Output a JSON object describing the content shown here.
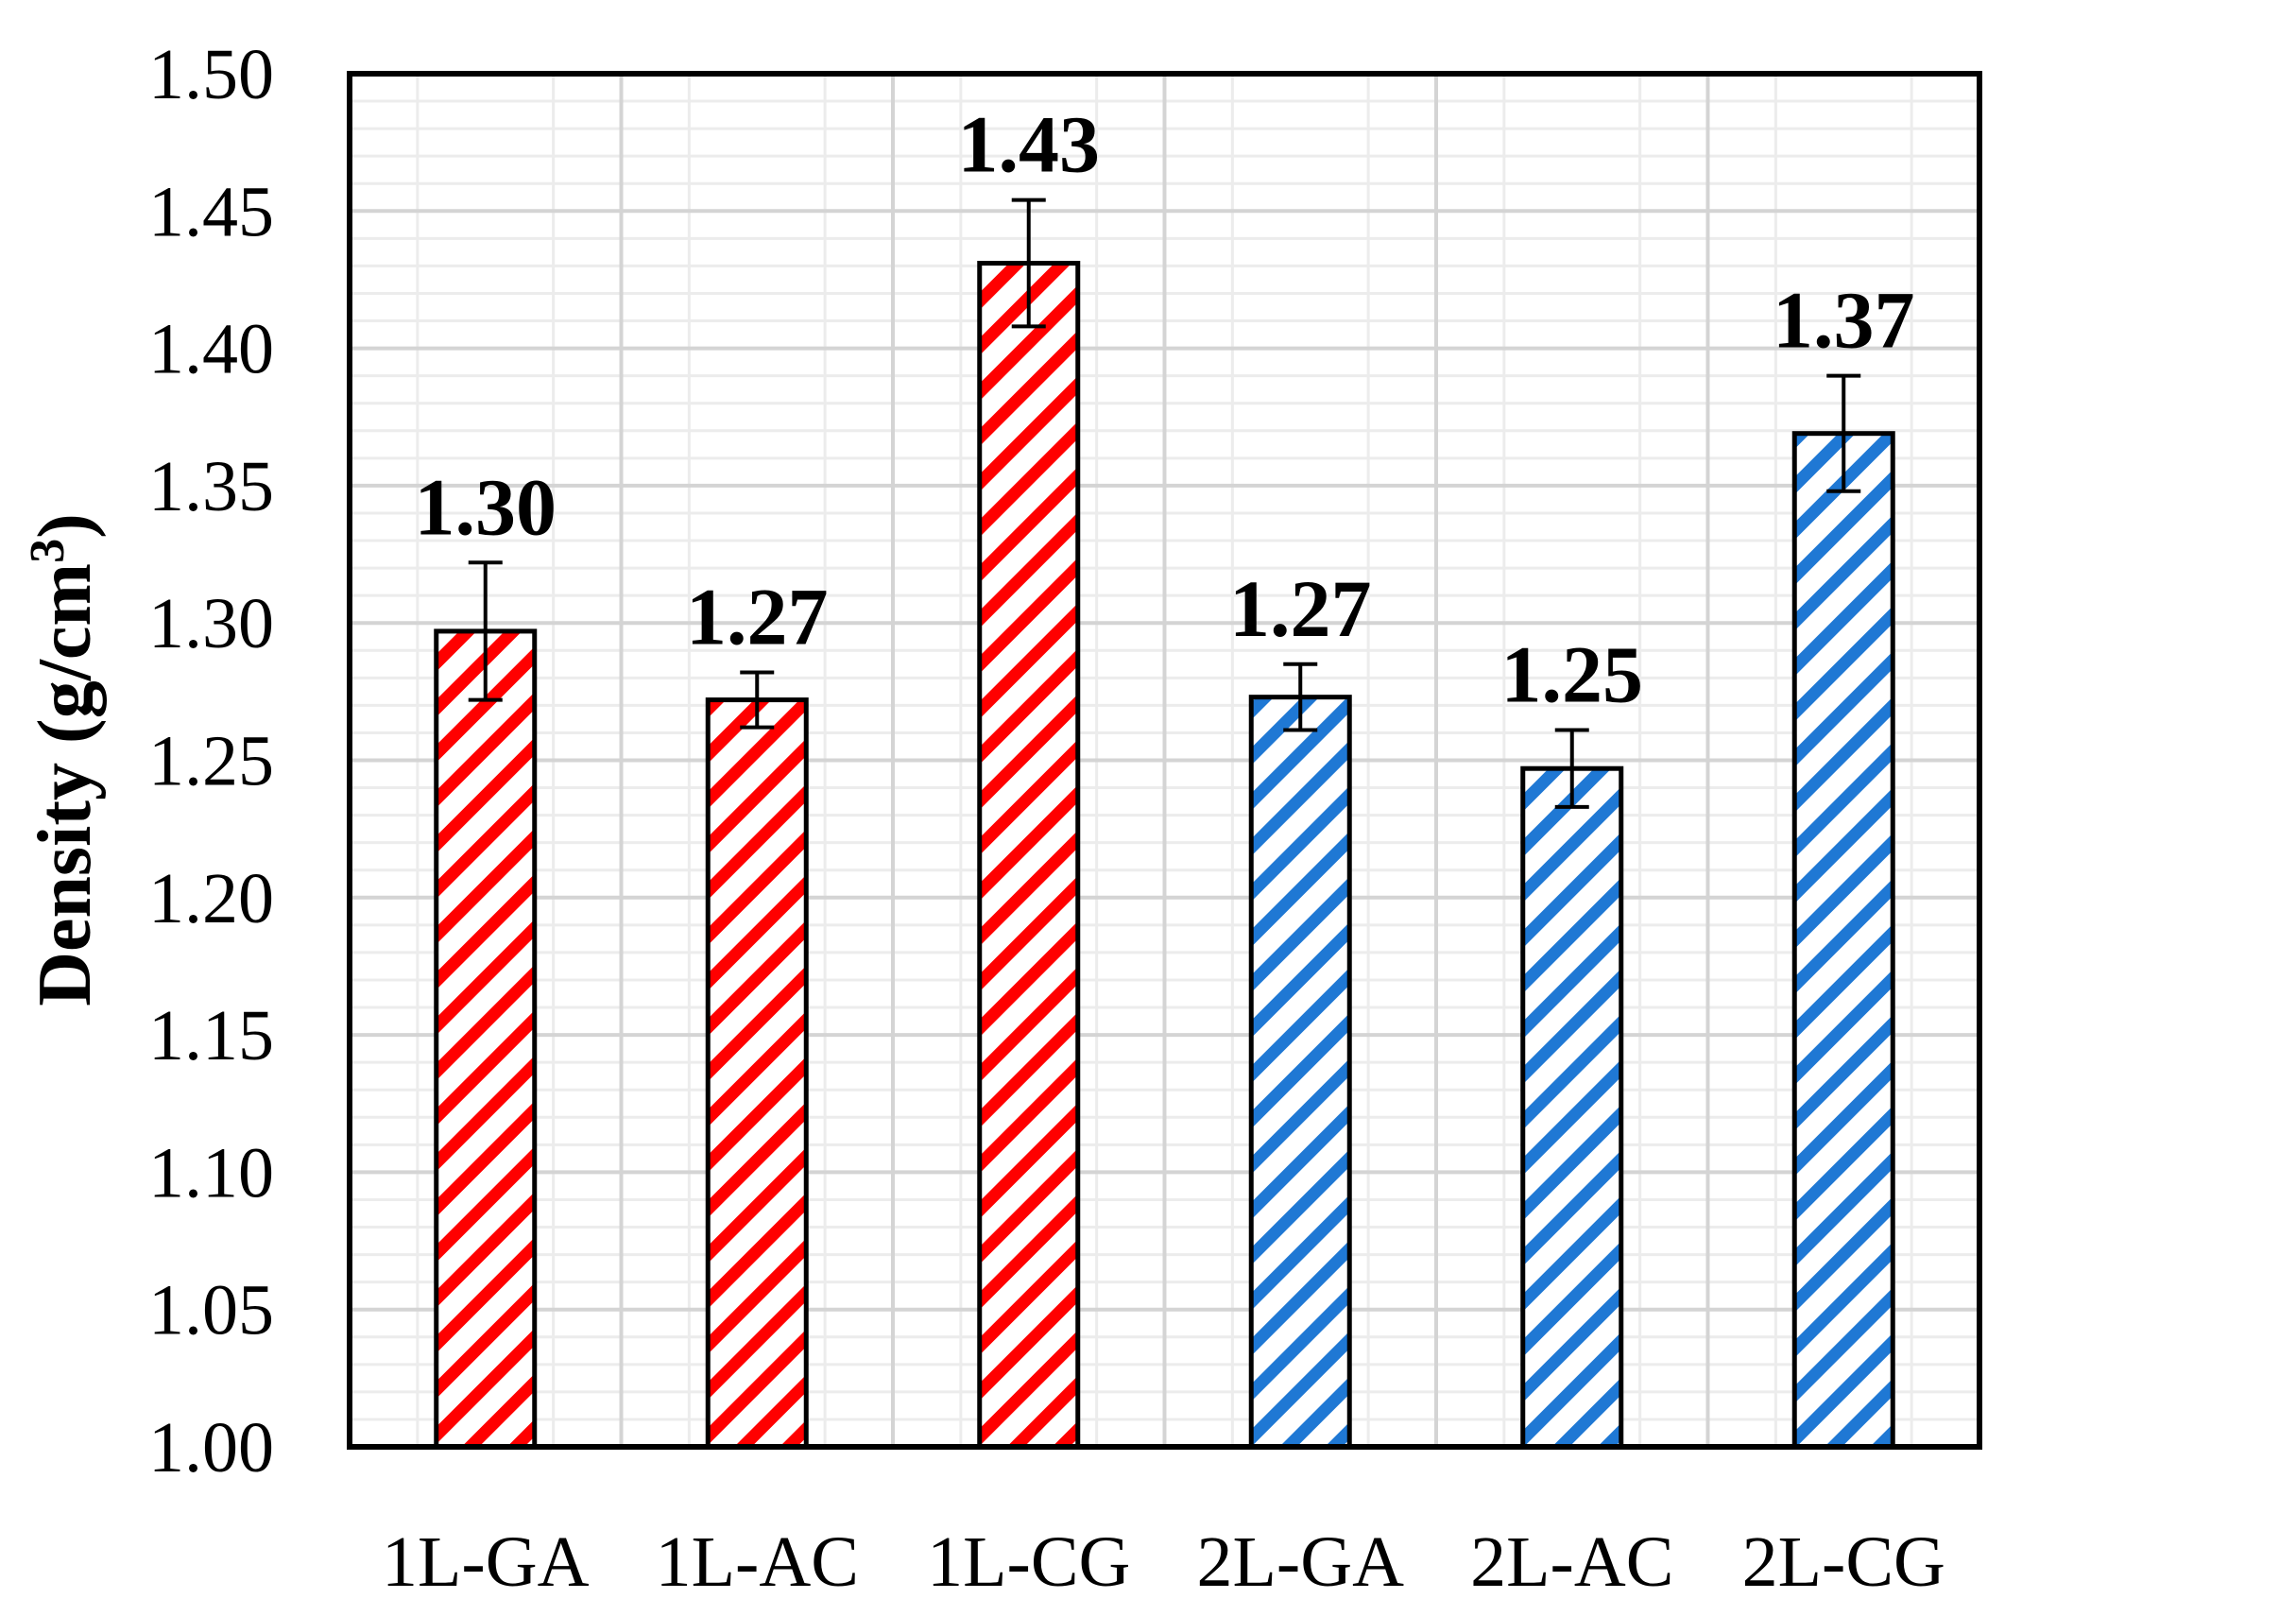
{
  "chart_data": {
    "type": "bar",
    "categories": [
      "1L-GA",
      "1L-AC",
      "1L-CG",
      "2L-GA",
      "2L-AC",
      "2L-CG"
    ],
    "values": [
      1.297,
      1.272,
      1.431,
      1.273,
      1.247,
      1.369
    ],
    "data_labels": [
      "1.30",
      "1.27",
      "1.43",
      "1.27",
      "1.25",
      "1.37"
    ],
    "errors": [
      0.025,
      0.01,
      0.023,
      0.012,
      0.014,
      0.021
    ],
    "bar_colors": [
      "#ff0000",
      "#ff0000",
      "#ff0000",
      "#1f78d4",
      "#1f78d4",
      "#1f78d4"
    ],
    "pattern": "diagonal-stripes",
    "title": "",
    "xlabel": "",
    "ylabel": "Density (g/cm",
    "ylabel_superscript": "3",
    "ylabel_suffix": ")",
    "ylim": [
      1.0,
      1.5
    ],
    "yticks": [
      "1.00",
      "1.05",
      "1.10",
      "1.15",
      "1.20",
      "1.25",
      "1.30",
      "1.35",
      "1.40",
      "1.45",
      "1.50"
    ],
    "grid": true,
    "legend": "none"
  }
}
